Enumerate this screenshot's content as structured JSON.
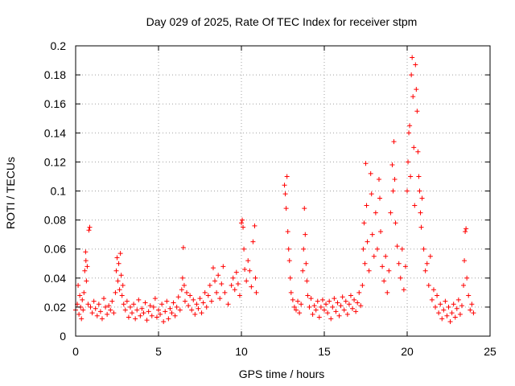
{
  "chart_data": {
    "type": "scatter",
    "title": "Day 029 of 2025, Rate Of TEC Index for receiver stpm",
    "xlabel": "GPS time / hours",
    "ylabel": "ROTI / TECUs",
    "xlim": [
      0,
      25
    ],
    "ylim": [
      0,
      0.2
    ],
    "xticks": [
      0,
      5,
      10,
      15,
      20,
      25
    ],
    "xtick_labels": [
      "0",
      "5",
      "10",
      "15",
      "20",
      "25"
    ],
    "yticks": [
      0,
      0.02,
      0.04,
      0.06,
      0.08,
      0.1,
      0.12,
      0.14,
      0.16,
      0.18,
      0.2
    ],
    "ytick_labels": [
      "0",
      "0.02",
      "0.04",
      "0.06",
      "0.08",
      "0.1",
      "0.12",
      "0.14",
      "0.16",
      "0.18",
      "0.2"
    ],
    "grid": true,
    "marker": "+",
    "color": "#ff0000",
    "series": [
      {
        "name": "ROTI",
        "points": [
          [
            0.0,
            0.018
          ],
          [
            0.1,
            0.022
          ],
          [
            0.15,
            0.035
          ],
          [
            0.2,
            0.015
          ],
          [
            0.25,
            0.028
          ],
          [
            0.3,
            0.02
          ],
          [
            0.35,
            0.012
          ],
          [
            0.4,
            0.025
          ],
          [
            0.45,
            0.018
          ],
          [
            0.5,
            0.03
          ],
          [
            0.55,
            0.045
          ],
          [
            0.6,
            0.058
          ],
          [
            0.62,
            0.052
          ],
          [
            0.65,
            0.038
          ],
          [
            0.7,
            0.048
          ],
          [
            0.75,
            0.022
          ],
          [
            0.8,
            0.073
          ],
          [
            0.85,
            0.075
          ],
          [
            0.9,
            0.02
          ],
          [
            1.0,
            0.016
          ],
          [
            1.1,
            0.024
          ],
          [
            1.2,
            0.019
          ],
          [
            1.3,
            0.014
          ],
          [
            1.4,
            0.022
          ],
          [
            1.5,
            0.017
          ],
          [
            1.6,
            0.012
          ],
          [
            1.7,
            0.026
          ],
          [
            1.8,
            0.02
          ],
          [
            1.9,
            0.015
          ],
          [
            2.0,
            0.021
          ],
          [
            2.1,
            0.018
          ],
          [
            2.2,
            0.024
          ],
          [
            2.3,
            0.016
          ],
          [
            2.4,
            0.03
          ],
          [
            2.45,
            0.045
          ],
          [
            2.5,
            0.054
          ],
          [
            2.55,
            0.038
          ],
          [
            2.6,
            0.05
          ],
          [
            2.65,
            0.032
          ],
          [
            2.7,
            0.057
          ],
          [
            2.75,
            0.042
          ],
          [
            2.8,
            0.028
          ],
          [
            2.85,
            0.035
          ],
          [
            2.9,
            0.022
          ],
          [
            3.0,
            0.018
          ],
          [
            3.1,
            0.024
          ],
          [
            3.2,
            0.013
          ],
          [
            3.3,
            0.02
          ],
          [
            3.4,
            0.016
          ],
          [
            3.5,
            0.022
          ],
          [
            3.6,
            0.012
          ],
          [
            3.7,
            0.018
          ],
          [
            3.8,
            0.025
          ],
          [
            3.9,
            0.014
          ],
          [
            4.0,
            0.019
          ],
          [
            4.1,
            0.016
          ],
          [
            4.2,
            0.023
          ],
          [
            4.3,
            0.011
          ],
          [
            4.4,
            0.017
          ],
          [
            4.5,
            0.021
          ],
          [
            4.6,
            0.014
          ],
          [
            4.7,
            0.02
          ],
          [
            4.8,
            0.026
          ],
          [
            4.9,
            0.013
          ],
          [
            5.0,
            0.018
          ],
          [
            5.1,
            0.015
          ],
          [
            5.2,
            0.022
          ],
          [
            5.3,
            0.01
          ],
          [
            5.4,
            0.017
          ],
          [
            5.5,
            0.024
          ],
          [
            5.6,
            0.012
          ],
          [
            5.7,
            0.019
          ],
          [
            5.8,
            0.016
          ],
          [
            5.9,
            0.023
          ],
          [
            6.0,
            0.014
          ],
          [
            6.1,
            0.02
          ],
          [
            6.2,
            0.027
          ],
          [
            6.3,
            0.018
          ],
          [
            6.4,
            0.032
          ],
          [
            6.45,
            0.04
          ],
          [
            6.5,
            0.061
          ],
          [
            6.55,
            0.035
          ],
          [
            6.6,
            0.024
          ],
          [
            6.7,
            0.03
          ],
          [
            6.8,
            0.021
          ],
          [
            6.9,
            0.028
          ],
          [
            7.0,
            0.018
          ],
          [
            7.1,
            0.025
          ],
          [
            7.2,
            0.015
          ],
          [
            7.3,
            0.022
          ],
          [
            7.4,
            0.019
          ],
          [
            7.5,
            0.026
          ],
          [
            7.6,
            0.016
          ],
          [
            7.7,
            0.023
          ],
          [
            7.8,
            0.03
          ],
          [
            7.9,
            0.02
          ],
          [
            8.0,
            0.028
          ],
          [
            8.1,
            0.035
          ],
          [
            8.2,
            0.024
          ],
          [
            8.3,
            0.047
          ],
          [
            8.4,
            0.038
          ],
          [
            8.5,
            0.03
          ],
          [
            8.6,
            0.042
          ],
          [
            8.7,
            0.026
          ],
          [
            8.8,
            0.036
          ],
          [
            8.9,
            0.048
          ],
          [
            9.0,
            0.03
          ],
          [
            9.2,
            0.022
          ],
          [
            9.4,
            0.035
          ],
          [
            9.5,
            0.04
          ],
          [
            9.6,
            0.032
          ],
          [
            9.7,
            0.044
          ],
          [
            9.8,
            0.036
          ],
          [
            9.9,
            0.028
          ],
          [
            10.0,
            0.078
          ],
          [
            10.05,
            0.08
          ],
          [
            10.1,
            0.075
          ],
          [
            10.15,
            0.06
          ],
          [
            10.2,
            0.046
          ],
          [
            10.3,
            0.038
          ],
          [
            10.4,
            0.052
          ],
          [
            10.5,
            0.045
          ],
          [
            10.6,
            0.034
          ],
          [
            10.7,
            0.065
          ],
          [
            10.8,
            0.076
          ],
          [
            10.85,
            0.04
          ],
          [
            10.9,
            0.03
          ],
          [
            12.6,
            0.104
          ],
          [
            12.65,
            0.098
          ],
          [
            12.7,
            0.088
          ],
          [
            12.75,
            0.11
          ],
          [
            12.8,
            0.072
          ],
          [
            12.85,
            0.06
          ],
          [
            12.9,
            0.052
          ],
          [
            12.95,
            0.04
          ],
          [
            13.0,
            0.03
          ],
          [
            13.1,
            0.025
          ],
          [
            13.2,
            0.02
          ],
          [
            13.3,
            0.018
          ],
          [
            13.4,
            0.024
          ],
          [
            13.5,
            0.016
          ],
          [
            13.6,
            0.022
          ],
          [
            13.7,
            0.045
          ],
          [
            13.75,
            0.06
          ],
          [
            13.8,
            0.088
          ],
          [
            13.85,
            0.07
          ],
          [
            13.9,
            0.05
          ],
          [
            13.95,
            0.038
          ],
          [
            14.0,
            0.028
          ],
          [
            14.1,
            0.02
          ],
          [
            14.2,
            0.026
          ],
          [
            14.3,
            0.015
          ],
          [
            14.4,
            0.021
          ],
          [
            14.5,
            0.018
          ],
          [
            14.6,
            0.024
          ],
          [
            14.7,
            0.013
          ],
          [
            14.8,
            0.02
          ],
          [
            14.9,
            0.025
          ],
          [
            15.0,
            0.018
          ],
          [
            15.1,
            0.022
          ],
          [
            15.2,
            0.016
          ],
          [
            15.3,
            0.024
          ],
          [
            15.4,
            0.012
          ],
          [
            15.5,
            0.02
          ],
          [
            15.6,
            0.026
          ],
          [
            15.7,
            0.017
          ],
          [
            15.8,
            0.023
          ],
          [
            15.9,
            0.014
          ],
          [
            16.0,
            0.021
          ],
          [
            16.1,
            0.027
          ],
          [
            16.2,
            0.018
          ],
          [
            16.3,
            0.024
          ],
          [
            16.4,
            0.015
          ],
          [
            16.5,
            0.022
          ],
          [
            16.6,
            0.028
          ],
          [
            16.7,
            0.019
          ],
          [
            16.8,
            0.025
          ],
          [
            16.9,
            0.017
          ],
          [
            17.0,
            0.023
          ],
          [
            17.1,
            0.03
          ],
          [
            17.2,
            0.021
          ],
          [
            17.3,
            0.035
          ],
          [
            17.35,
            0.06
          ],
          [
            17.4,
            0.078
          ],
          [
            17.45,
            0.05
          ],
          [
            17.5,
            0.119
          ],
          [
            17.55,
            0.09
          ],
          [
            17.6,
            0.065
          ],
          [
            17.7,
            0.045
          ],
          [
            17.8,
            0.112
          ],
          [
            17.85,
            0.098
          ],
          [
            17.9,
            0.07
          ],
          [
            18.0,
            0.055
          ],
          [
            18.1,
            0.085
          ],
          [
            18.2,
            0.06
          ],
          [
            18.3,
            0.108
          ],
          [
            18.35,
            0.095
          ],
          [
            18.4,
            0.072
          ],
          [
            18.5,
            0.048
          ],
          [
            18.6,
            0.038
          ],
          [
            18.7,
            0.055
          ],
          [
            18.8,
            0.03
          ],
          [
            18.9,
            0.045
          ],
          [
            19.0,
            0.085
          ],
          [
            19.1,
            0.118
          ],
          [
            19.15,
            0.1
          ],
          [
            19.2,
            0.134
          ],
          [
            19.25,
            0.108
          ],
          [
            19.3,
            0.078
          ],
          [
            19.4,
            0.062
          ],
          [
            19.5,
            0.05
          ],
          [
            19.6,
            0.04
          ],
          [
            19.7,
            0.06
          ],
          [
            19.8,
            0.032
          ],
          [
            19.9,
            0.048
          ],
          [
            20.0,
            0.1
          ],
          [
            20.05,
            0.12
          ],
          [
            20.1,
            0.14
          ],
          [
            20.15,
            0.145
          ],
          [
            20.2,
            0.11
          ],
          [
            20.25,
            0.18
          ],
          [
            20.3,
            0.192
          ],
          [
            20.35,
            0.165
          ],
          [
            20.4,
            0.13
          ],
          [
            20.45,
            0.09
          ],
          [
            20.5,
            0.187
          ],
          [
            20.55,
            0.17
          ],
          [
            20.6,
            0.155
          ],
          [
            20.65,
            0.127
          ],
          [
            20.7,
            0.11
          ],
          [
            20.75,
            0.1
          ],
          [
            20.8,
            0.085
          ],
          [
            20.85,
            0.075
          ],
          [
            20.9,
            0.095
          ],
          [
            21.0,
            0.06
          ],
          [
            21.1,
            0.045
          ],
          [
            21.2,
            0.05
          ],
          [
            21.3,
            0.035
          ],
          [
            21.4,
            0.055
          ],
          [
            21.5,
            0.025
          ],
          [
            21.6,
            0.032
          ],
          [
            21.7,
            0.02
          ],
          [
            21.8,
            0.028
          ],
          [
            21.9,
            0.016
          ],
          [
            22.0,
            0.022
          ],
          [
            22.1,
            0.012
          ],
          [
            22.2,
            0.018
          ],
          [
            22.3,
            0.024
          ],
          [
            22.4,
            0.014
          ],
          [
            22.5,
            0.02
          ],
          [
            22.6,
            0.01
          ],
          [
            22.7,
            0.016
          ],
          [
            22.8,
            0.022
          ],
          [
            22.9,
            0.013
          ],
          [
            23.0,
            0.019
          ],
          [
            23.1,
            0.025
          ],
          [
            23.2,
            0.015
          ],
          [
            23.3,
            0.021
          ],
          [
            23.4,
            0.035
          ],
          [
            23.45,
            0.052
          ],
          [
            23.5,
            0.072
          ],
          [
            23.55,
            0.074
          ],
          [
            23.6,
            0.04
          ],
          [
            23.7,
            0.028
          ],
          [
            23.8,
            0.018
          ],
          [
            23.9,
            0.022
          ],
          [
            24.0,
            0.016
          ]
        ]
      }
    ]
  }
}
